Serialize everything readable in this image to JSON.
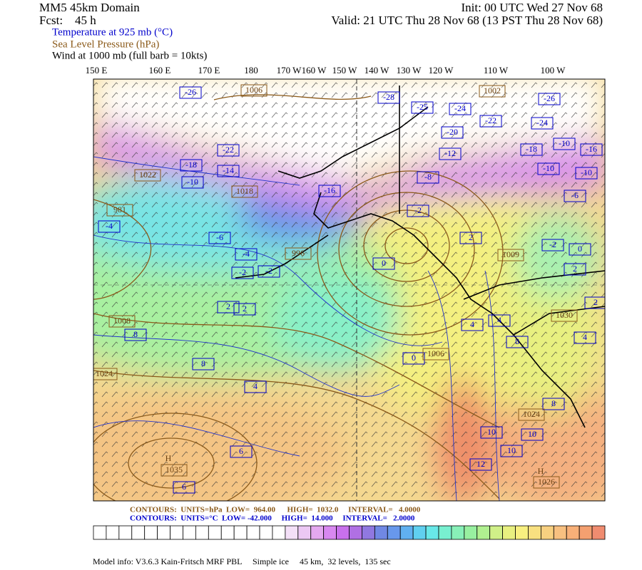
{
  "header": {
    "model": "MM5 45km Domain",
    "forecast": "Fcst:    45 h",
    "init": "Init: 00 UTC Wed 27 Nov 68",
    "valid": "Valid: 21 UTC Thu 28 Nov 68 (13 PST Thu 28 Nov 68)",
    "fields": [
      {
        "text": "Temperature at 925 mb (°C)",
        "color": "#0000cc"
      },
      {
        "text": "Sea Level Pressure (hPa)",
        "color": "#8b5a1a"
      },
      {
        "text": "Wind at 1000 mb (full barb = 10kts)",
        "color": "#000000"
      }
    ]
  },
  "longitudes": [
    "150 E",
    "160 E",
    "170 E",
    "180",
    "170 W",
    "160 W",
    "150 W",
    "140 W",
    "130 W",
    "120 W",
    "110 W",
    "100 W"
  ],
  "map_labels": {
    "temperature": [
      "-26",
      "-28",
      "-26",
      "-25",
      "-24",
      "-22",
      "-24",
      "-20",
      "-22",
      "-12",
      "-18",
      "-10",
      "-16",
      "-18",
      "-14",
      "-10",
      "-16",
      "-8",
      "-10",
      "-10",
      "-6",
      "-4",
      "-6",
      "-4",
      "-2",
      "-2",
      "2",
      "2",
      "0",
      "0",
      "-2",
      "2",
      "-2",
      "0",
      "2",
      "4",
      "4",
      "6",
      "8",
      "8",
      "10",
      "10",
      "10",
      "12",
      "8",
      "6",
      "4",
      "8",
      "4",
      "2"
    ],
    "pressure": [
      "1006",
      "1002",
      "1022",
      "1018",
      "981",
      "996",
      "1009",
      "1008",
      "1024",
      "1006",
      "1024",
      "1035",
      "1026",
      "1030"
    ],
    "centers": [
      "H",
      "H"
    ]
  },
  "contour_info": [
    {
      "text": "CONTOURS:  UNITS=hPa  LOW=  964.00      HIGH=  1032.0     INTERVAL=   4.0000",
      "color": "#8b5a1a"
    },
    {
      "text": "CONTOURS:  UNITS=°C  LOW= -42.000     HIGH=  14.000     INTERVAL=   2.0000",
      "color": "#0000cc"
    }
  ],
  "colorbar": [
    "#ffffff",
    "#ffffff",
    "#ffffff",
    "#ffffff",
    "#ffffff",
    "#ffffff",
    "#ffffff",
    "#ffffff",
    "#ffffff",
    "#ffffff",
    "#ffffff",
    "#ffffff",
    "#ffffff",
    "#ffffff",
    "#ffffff",
    "#f4e0f8",
    "#ecc8f4",
    "#e4a8f0",
    "#d888f0",
    "#c870ec",
    "#b070e4",
    "#9078e0",
    "#7088e4",
    "#6898ec",
    "#60b0f0",
    "#60d0f0",
    "#68e8e8",
    "#78f0d0",
    "#88f0b8",
    "#98f0a0",
    "#b0f090",
    "#d0f088",
    "#e8f080",
    "#f8f080",
    "#f8e080",
    "#f8d080",
    "#f8c080",
    "#f8b078",
    "#f4a070",
    "#f08c70"
  ],
  "footer": "Model info: V3.6.3 Kain-Fritsch MRF PBL     Simple ice     45 km,  32 levels,  135 sec"
}
